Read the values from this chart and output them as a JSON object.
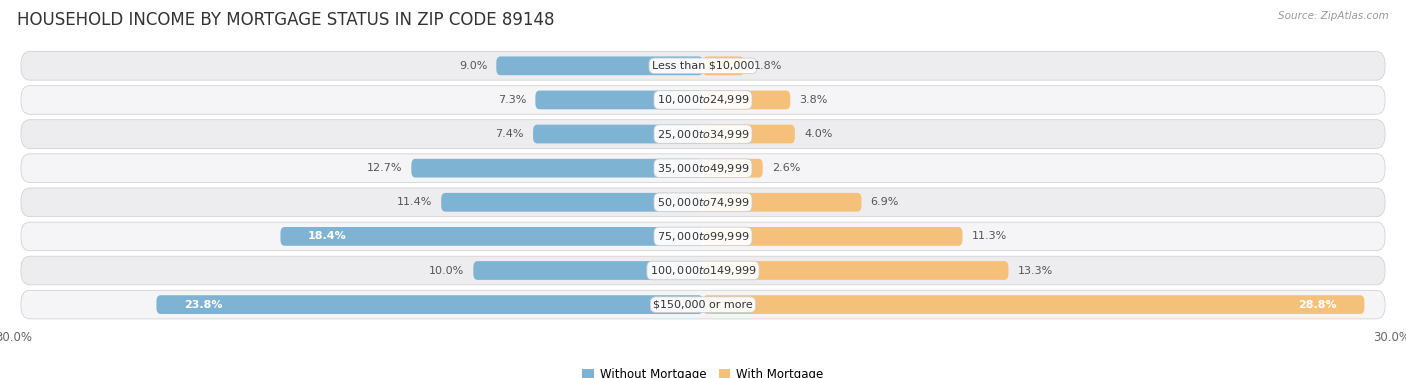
{
  "title": "HOUSEHOLD INCOME BY MORTGAGE STATUS IN ZIP CODE 89148",
  "source": "Source: ZipAtlas.com",
  "categories": [
    "Less than $10,000",
    "$10,000 to $24,999",
    "$25,000 to $34,999",
    "$35,000 to $49,999",
    "$50,000 to $74,999",
    "$75,000 to $99,999",
    "$100,000 to $149,999",
    "$150,000 or more"
  ],
  "without_mortgage": [
    9.0,
    7.3,
    7.4,
    12.7,
    11.4,
    18.4,
    10.0,
    23.8
  ],
  "with_mortgage": [
    1.8,
    3.8,
    4.0,
    2.6,
    6.9,
    11.3,
    13.3,
    28.8
  ],
  "color_without": "#7fb3d3",
  "color_with": "#f5c07a",
  "color_without_dark": "#5a9abf",
  "color_with_dark": "#e8a840",
  "bg_row_odd": "#ededf0",
  "bg_row_even": "#f5f5f7",
  "axis_limit": 30.0,
  "title_fontsize": 12,
  "label_fontsize": 8,
  "value_fontsize": 8,
  "tick_fontsize": 8.5,
  "legend_fontsize": 8.5,
  "bar_height": 0.55,
  "background_color": "#ffffff"
}
